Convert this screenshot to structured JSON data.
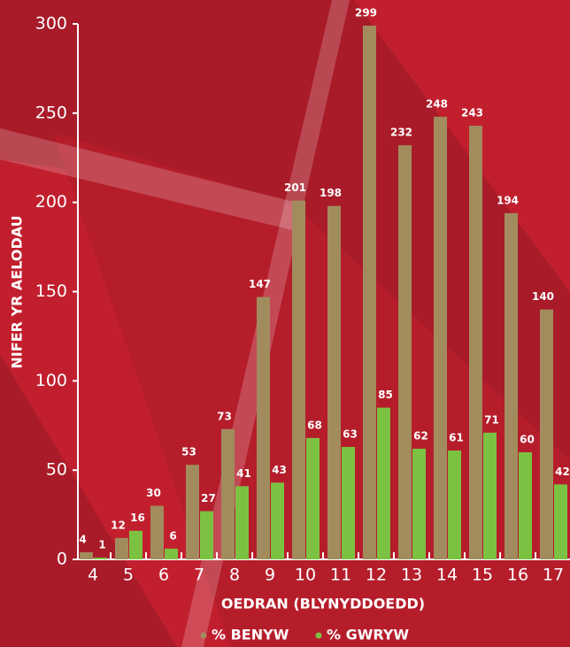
{
  "chart_data": {
    "type": "bar",
    "x_label": "OEDRAN (BLYNYDDOEDD)",
    "y_label": "NIFER YR AELODAU",
    "categories": [
      "4",
      "5",
      "6",
      "7",
      "8",
      "9",
      "10",
      "11",
      "12",
      "13",
      "14",
      "15",
      "16",
      "17"
    ],
    "series": [
      {
        "name": "% BENYW",
        "color": "#a28c5e",
        "values": [
          4,
          12,
          30,
          53,
          73,
          147,
          201,
          198,
          299,
          232,
          248,
          243,
          194,
          140
        ]
      },
      {
        "name": "% GWRYW",
        "color": "#7cc242",
        "values": [
          1,
          16,
          6,
          27,
          41,
          43,
          68,
          63,
          85,
          62,
          61,
          71,
          60,
          42
        ]
      }
    ],
    "ylim": [
      0,
      300
    ],
    "yticks": [
      0,
      50,
      100,
      150,
      200,
      250,
      300
    ]
  }
}
